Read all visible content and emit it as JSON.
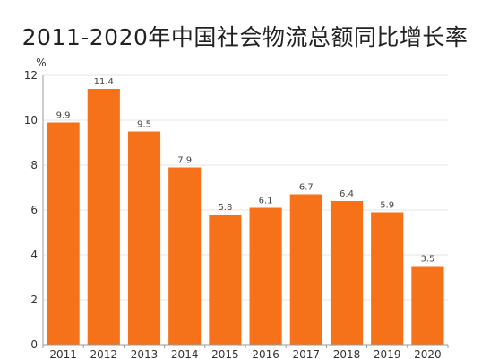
{
  "title": "2011-2020年中国社会物流总额同比增长率",
  "chart_data": {
    "type": "bar",
    "title": "2011-2020年中国社会物流总额同比增长率",
    "xlabel": "",
    "ylabel": "%",
    "categories": [
      "2011",
      "2012",
      "2013",
      "2014",
      "2015",
      "2016",
      "2017",
      "2018",
      "2019",
      "2020"
    ],
    "values": [
      9.9,
      11.4,
      9.5,
      7.9,
      5.8,
      6.1,
      6.7,
      6.4,
      5.9,
      3.5
    ],
    "ylim": [
      0,
      12
    ],
    "yticks": [
      0,
      2,
      4,
      6,
      8,
      10,
      12
    ],
    "grid": true,
    "legend": "none",
    "bar_color": "#f5721b",
    "grid_color": "#e6e6e6",
    "axis_color": "#999999"
  }
}
